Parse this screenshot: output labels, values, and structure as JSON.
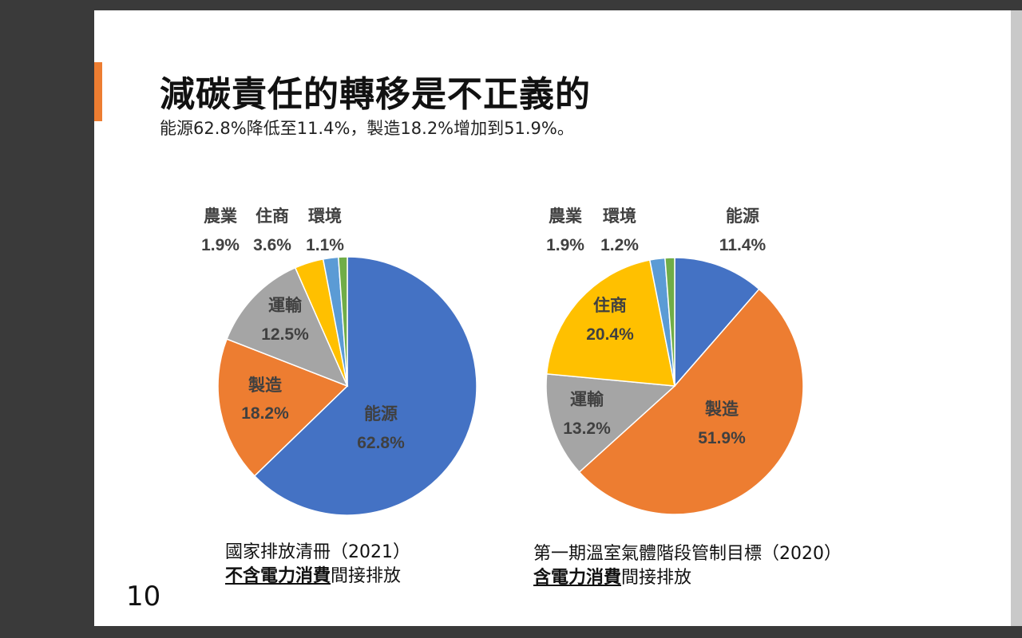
{
  "slide": {
    "title": "減碳責任的轉移是不正義的",
    "subtitle": "能源62.8%降低至11.4%，製造18.2%增加到51.9%。",
    "page_number": "10"
  },
  "captions": [
    {
      "line1": "國家排放清冊（2021）",
      "emphasis": "不含電力消費",
      "rest": "間接排放"
    },
    {
      "line1": "第一期溫室氣體階段管制目標（2020）",
      "emphasis": "含電力消費",
      "rest": "間接排放"
    }
  ],
  "chart_data": [
    {
      "type": "pie",
      "categories": [
        "能源",
        "製造",
        "運輸",
        "住商",
        "農業",
        "環境"
      ],
      "values": [
        62.8,
        18.2,
        12.5,
        3.6,
        1.9,
        1.1
      ],
      "labels": [
        "62.8%",
        "18.2%",
        "12.5%",
        "3.6%",
        "1.9%",
        "1.1%"
      ],
      "colors": [
        "#4472c4",
        "#ed7d31",
        "#a5a5a5",
        "#ffc000",
        "#5b9bd5",
        "#70ad47"
      ]
    },
    {
      "type": "pie",
      "categories": [
        "能源",
        "製造",
        "運輸",
        "住商",
        "農業",
        "環境"
      ],
      "values": [
        11.4,
        51.9,
        13.2,
        20.4,
        1.9,
        1.2
      ],
      "labels": [
        "11.4%",
        "51.9%",
        "13.2%",
        "20.4%",
        "1.9%",
        "1.2%"
      ],
      "colors": [
        "#4472c4",
        "#ed7d31",
        "#a5a5a5",
        "#ffc000",
        "#5b9bd5",
        "#70ad47"
      ]
    }
  ]
}
